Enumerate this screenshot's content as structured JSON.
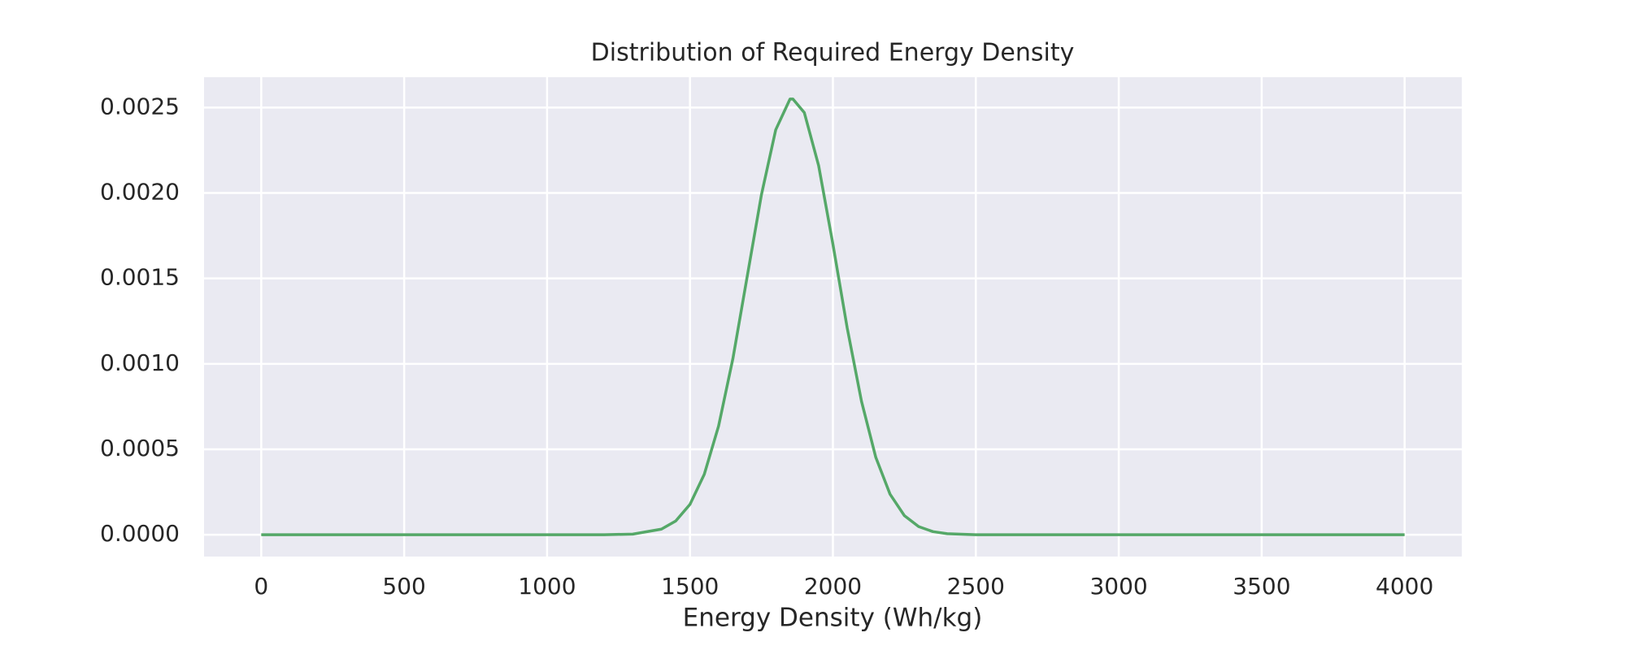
{
  "chart_data": {
    "type": "line",
    "title": "Distribution of Required Energy Density",
    "xlabel": "Energy Density (Wh/kg)",
    "x": [
      0,
      500,
      1000,
      1200,
      1300,
      1400,
      1450,
      1500,
      1550,
      1600,
      1650,
      1700,
      1750,
      1800,
      1850,
      1860,
      1900,
      1950,
      2000,
      2050,
      2100,
      2150,
      2200,
      2250,
      2300,
      2350,
      2400,
      2500,
      3000,
      3500,
      4000
    ],
    "values": [
      0,
      0,
      0,
      3e-07,
      4e-06,
      3.3e-05,
      8.06e-05,
      0.000178,
      0.000354,
      0.000636,
      0.00103,
      0.00151,
      0.00199,
      0.00237,
      0.00255,
      0.00255,
      0.00247,
      0.00216,
      0.0017,
      0.00121,
      0.000781,
      0.000453,
      0.000237,
      0.000112,
      4.77e-05,
      1.83e-05,
      6.4e-06,
      0,
      0,
      0,
      0
    ],
    "color": "#55a868",
    "xlim": [
      -200,
      4200
    ],
    "ylim": [
      -0.0001275,
      0.0026775
    ],
    "xticks": [
      0,
      500,
      1000,
      1500,
      2000,
      2500,
      3000,
      3500,
      4000
    ],
    "yticks": [
      {
        "value": 0,
        "label": "0.0000"
      },
      {
        "value": 0.0005,
        "label": "0.0005"
      },
      {
        "value": 0.001,
        "label": "0.0010"
      },
      {
        "value": 0.0015,
        "label": "0.0015"
      },
      {
        "value": 0.002,
        "label": "0.0020"
      },
      {
        "value": 0.0025,
        "label": "0.0025"
      }
    ],
    "grid": true
  }
}
